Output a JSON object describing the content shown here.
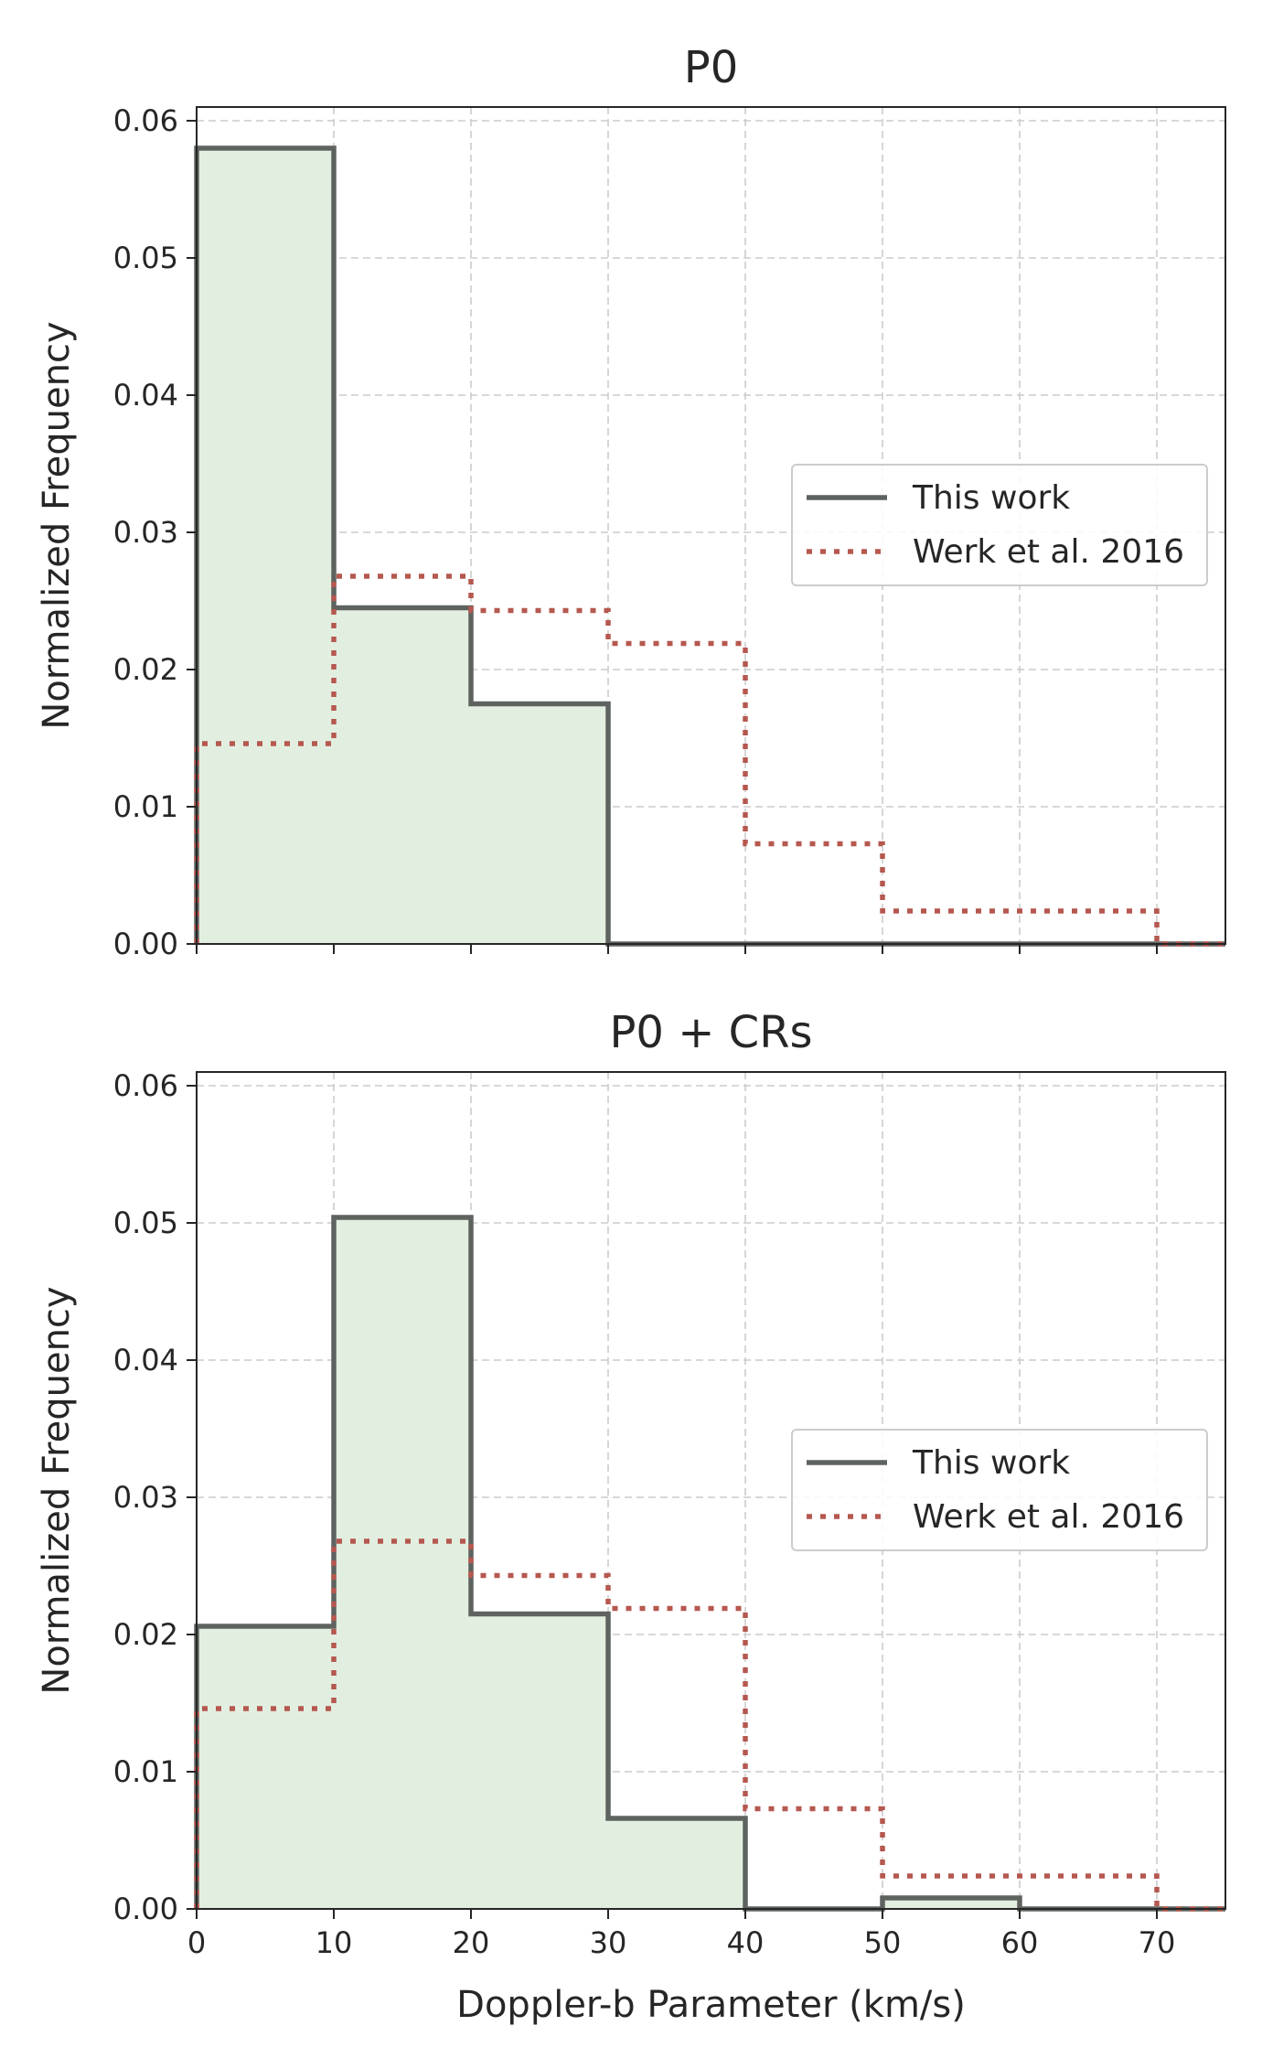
{
  "chart_data": [
    {
      "type": "histogram",
      "title": "P0",
      "xlabel": "",
      "ylabel": "Normalized Frequency",
      "xlim": [
        0,
        75
      ],
      "ylim": [
        0,
        0.061
      ],
      "xticks": [
        0,
        10,
        20,
        30,
        40,
        50,
        60,
        70
      ],
      "xtick_labels_shown": false,
      "yticks": [
        "0.00",
        "0.01",
        "0.02",
        "0.03",
        "0.04",
        "0.05",
        "0.06"
      ],
      "grid": true,
      "legend_position": "center-right",
      "bin_edges": [
        0,
        10,
        20,
        30,
        40,
        50,
        60,
        70,
        80
      ],
      "series": [
        {
          "name": "This work",
          "style": "solid-step-filled",
          "color": "#5f6360",
          "fill": "#e2efe0",
          "values": [
            0.058,
            0.0245,
            0.0175,
            0.0,
            0.0,
            0.0,
            0.0,
            0.0
          ]
        },
        {
          "name": "Werk et al. 2016",
          "style": "dotted-step",
          "color": "#b5584f",
          "values": [
            0.0146,
            0.0268,
            0.0243,
            0.0219,
            0.0073,
            0.0024,
            0.0024,
            0.0
          ]
        }
      ]
    },
    {
      "type": "histogram",
      "title": "P0 + CRs",
      "xlabel": "Doppler-b Parameter (km/s)",
      "ylabel": "Normalized Frequency",
      "xlim": [
        0,
        75
      ],
      "ylim": [
        0,
        0.061
      ],
      "xticks": [
        0,
        10,
        20,
        30,
        40,
        50,
        60,
        70
      ],
      "xtick_labels_shown": true,
      "yticks": [
        "0.00",
        "0.01",
        "0.02",
        "0.03",
        "0.04",
        "0.05",
        "0.06"
      ],
      "grid": true,
      "legend_position": "center-right",
      "bin_edges": [
        0,
        10,
        20,
        30,
        40,
        50,
        60,
        70,
        80
      ],
      "series": [
        {
          "name": "This work",
          "style": "solid-step-filled",
          "color": "#5f6360",
          "fill": "#e2efe0",
          "values": [
            0.0206,
            0.0504,
            0.0215,
            0.0066,
            0.0,
            0.0008,
            0.0,
            0.0
          ]
        },
        {
          "name": "Werk et al. 2016",
          "style": "dotted-step",
          "color": "#b5584f",
          "values": [
            0.0146,
            0.0268,
            0.0243,
            0.0219,
            0.0073,
            0.0024,
            0.0024,
            0.0
          ]
        }
      ]
    }
  ]
}
